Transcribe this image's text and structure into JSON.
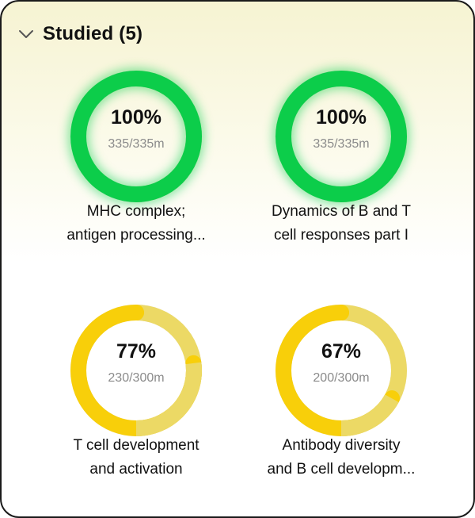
{
  "header": {
    "title": "Studied (5)",
    "icon": "chevron-down-icon"
  },
  "colors": {
    "green": "#0ccd4a",
    "green_light": "#74d86a",
    "yellow": "#f8cf0a",
    "yellow_light": "#ecd965",
    "track": "#d9d9d9"
  },
  "items": [
    {
      "percent_text": "100%",
      "progress": 1.0,
      "minutes": "335/335m",
      "title_line1": "MHC complex;",
      "title_line2": "antigen processing...",
      "theme": "green"
    },
    {
      "percent_text": "100%",
      "progress": 1.0,
      "minutes": "335/335m",
      "title_line1": "Dynamics of B and T",
      "title_line2": "cell responses part I",
      "theme": "green"
    },
    {
      "percent_text": "77%",
      "progress": 0.77,
      "minutes": "230/300m",
      "title_line1": "T cell development",
      "title_line2": "and activation",
      "theme": "yellow"
    },
    {
      "percent_text": "67%",
      "progress": 0.67,
      "minutes": "200/300m",
      "title_line1": "Antibody diversity",
      "title_line2": "and B cell developm...",
      "theme": "yellow"
    }
  ]
}
